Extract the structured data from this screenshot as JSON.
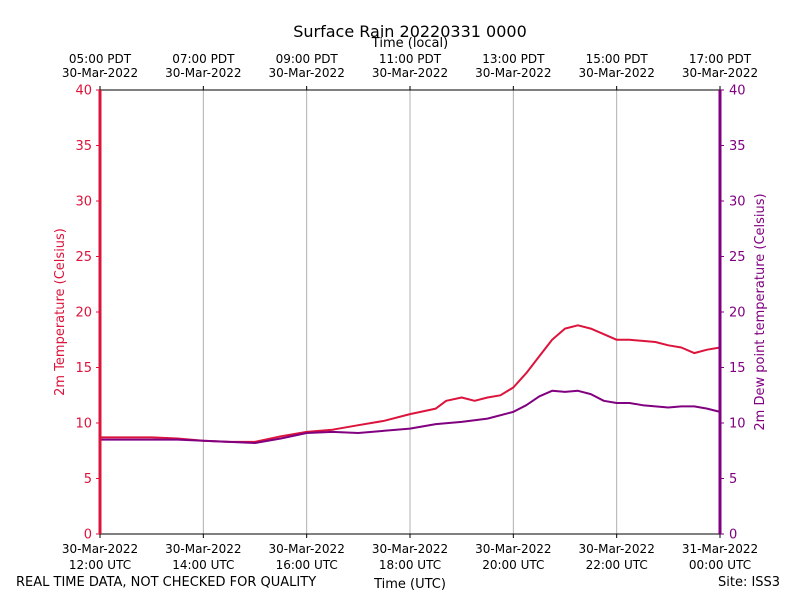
{
  "chart_data": {
    "type": "line",
    "title": "Surface Rain 20220331 0000",
    "top_xlabel": "Time (local)",
    "xlabel": "Time (UTC)",
    "ylabel_left": "2m Temperature (Celsius)",
    "ylabel_right": "2m Dew point temperature (Celsius)",
    "ylim": [
      0,
      40
    ],
    "yticks": [
      0,
      5,
      10,
      15,
      20,
      25,
      30,
      35,
      40
    ],
    "xlim_utc_hours": [
      12,
      24
    ],
    "x_ticks_utc": [
      {
        "hour": 12,
        "line1": "30-Mar-2022",
        "line2": "12:00 UTC"
      },
      {
        "hour": 14,
        "line1": "30-Mar-2022",
        "line2": "14:00 UTC"
      },
      {
        "hour": 16,
        "line1": "30-Mar-2022",
        "line2": "16:00 UTC"
      },
      {
        "hour": 18,
        "line1": "30-Mar-2022",
        "line2": "18:00 UTC"
      },
      {
        "hour": 20,
        "line1": "30-Mar-2022",
        "line2": "20:00 UTC"
      },
      {
        "hour": 22,
        "line1": "30-Mar-2022",
        "line2": "22:00 UTC"
      },
      {
        "hour": 24,
        "line1": "31-Mar-2022",
        "line2": "00:00 UTC"
      }
    ],
    "x_ticks_local": [
      {
        "hour": 12,
        "line1": "05:00 PDT",
        "line2": "30-Mar-2022"
      },
      {
        "hour": 14,
        "line1": "07:00 PDT",
        "line2": "30-Mar-2022"
      },
      {
        "hour": 16,
        "line1": "09:00 PDT",
        "line2": "30-Mar-2022"
      },
      {
        "hour": 18,
        "line1": "11:00 PDT",
        "line2": "30-Mar-2022"
      },
      {
        "hour": 20,
        "line1": "13:00 PDT",
        "line2": "30-Mar-2022"
      },
      {
        "hour": 22,
        "line1": "15:00 PDT",
        "line2": "30-Mar-2022"
      },
      {
        "hour": 24,
        "line1": "17:00 PDT",
        "line2": "30-Mar-2022"
      }
    ],
    "grid": "vertical",
    "series": [
      {
        "color": "#dc143c",
        "x": [
          12.0,
          12.5,
          13.0,
          13.5,
          14.0,
          14.5,
          15.0,
          15.5,
          16.0,
          16.5,
          17.0,
          17.5,
          18.0,
          18.5,
          18.7,
          19.0,
          19.25,
          19.5,
          19.75,
          20.0,
          20.25,
          20.5,
          20.75,
          21.0,
          21.25,
          21.5,
          21.75,
          22.0,
          22.25,
          22.5,
          22.75,
          23.0,
          23.25,
          23.5,
          23.75,
          24.0
        ],
        "values": [
          8.7,
          8.7,
          8.7,
          8.6,
          8.4,
          8.3,
          8.3,
          8.8,
          9.2,
          9.4,
          9.8,
          10.2,
          10.8,
          11.3,
          12.0,
          12.3,
          12.0,
          12.3,
          12.5,
          13.2,
          14.5,
          16.0,
          17.5,
          18.5,
          18.8,
          18.5,
          18.0,
          17.5,
          17.5,
          17.4,
          17.3,
          17.0,
          16.8,
          16.3,
          16.6,
          16.8
        ]
      },
      {
        "color": "#800080",
        "x": [
          12.0,
          12.5,
          13.0,
          13.5,
          14.0,
          14.5,
          15.0,
          15.5,
          16.0,
          16.5,
          17.0,
          17.5,
          18.0,
          18.5,
          19.0,
          19.5,
          20.0,
          20.25,
          20.5,
          20.75,
          21.0,
          21.25,
          21.5,
          21.75,
          22.0,
          22.25,
          22.5,
          22.75,
          23.0,
          23.25,
          23.5,
          23.75,
          24.0
        ],
        "values": [
          8.5,
          8.5,
          8.5,
          8.5,
          8.4,
          8.3,
          8.2,
          8.6,
          9.1,
          9.2,
          9.1,
          9.3,
          9.5,
          9.9,
          10.1,
          10.4,
          11.0,
          11.6,
          12.4,
          12.9,
          12.8,
          12.9,
          12.6,
          12.0,
          11.8,
          11.8,
          11.6,
          11.5,
          11.4,
          11.5,
          11.5,
          11.3,
          11.0
        ]
      }
    ]
  },
  "footer": {
    "disclaimer": "REAL TIME DATA, NOT CHECKED FOR QUALITY",
    "site": "Site: ISS3"
  },
  "colors": {
    "temperature": "#dc143c",
    "dewpoint": "#800080",
    "grid": "#b0b0b0"
  }
}
